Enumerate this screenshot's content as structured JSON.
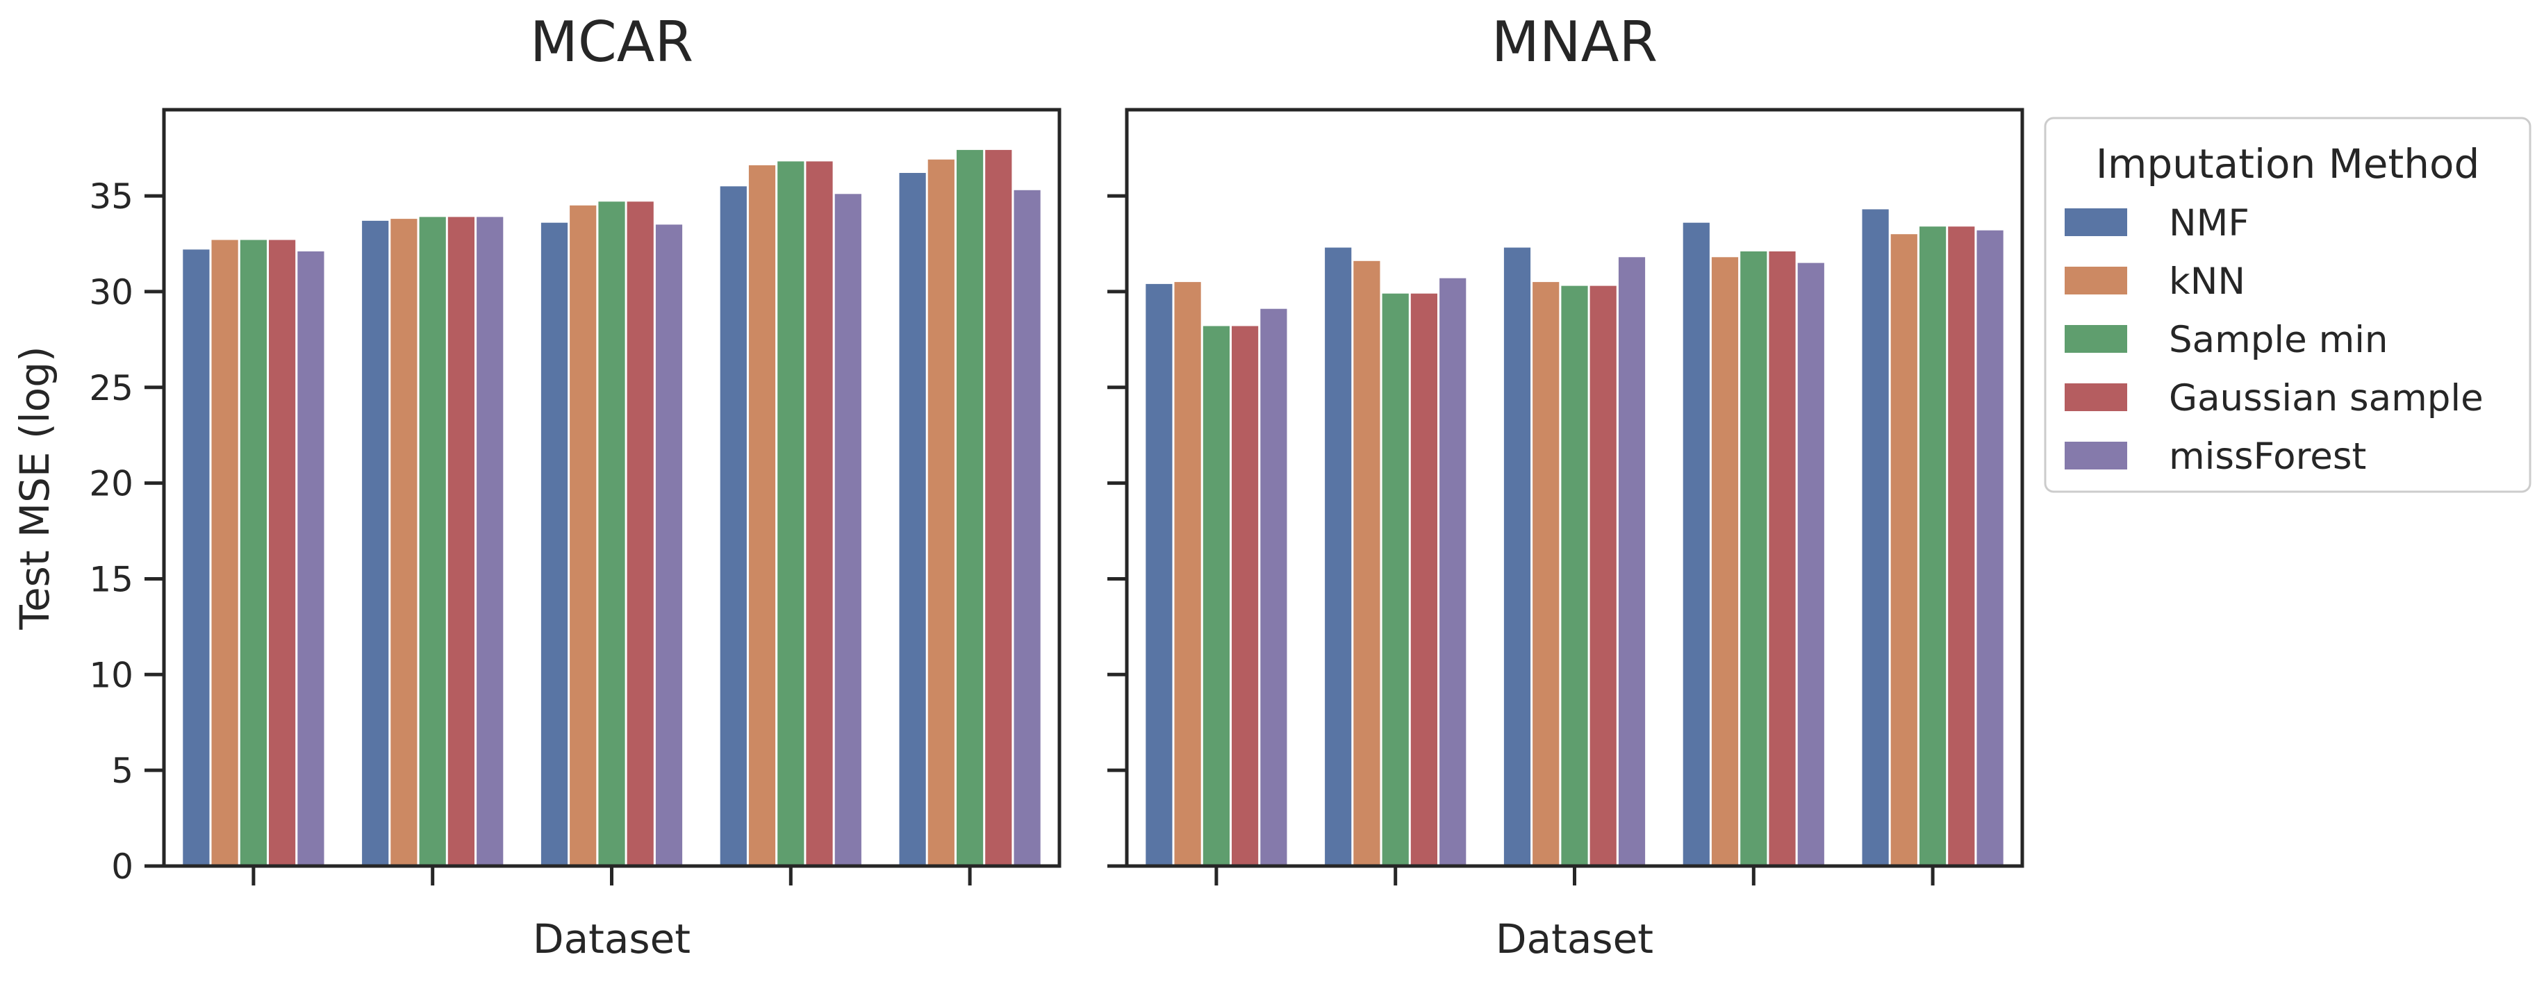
{
  "chart_data": [
    {
      "type": "bar",
      "title": "MCAR",
      "xlabel": "Dataset",
      "ylabel": "Test MSE (log)",
      "ylim": [
        0,
        39.5
      ],
      "yticks": [
        0,
        5,
        10,
        15,
        20,
        25,
        30,
        35
      ],
      "categories": [
        "",
        "",
        "",
        "",
        ""
      ],
      "grid": false,
      "series": [
        {
          "name": "NMF",
          "values": [
            32.2,
            33.7,
            33.6,
            35.5,
            36.2
          ]
        },
        {
          "name": "kNN",
          "values": [
            32.7,
            33.8,
            34.5,
            36.6,
            36.9
          ]
        },
        {
          "name": "Sample min",
          "values": [
            32.7,
            33.9,
            34.7,
            36.8,
            37.4
          ]
        },
        {
          "name": "Gaussian sample",
          "values": [
            32.7,
            33.9,
            34.7,
            36.8,
            37.4
          ]
        },
        {
          "name": "missForest",
          "values": [
            32.1,
            33.9,
            33.5,
            35.1,
            35.3
          ]
        }
      ]
    },
    {
      "type": "bar",
      "title": "MNAR",
      "xlabel": "Dataset",
      "ylabel": "",
      "ylim": [
        0,
        39.5
      ],
      "yticks": [
        0,
        5,
        10,
        15,
        20,
        25,
        30,
        35
      ],
      "categories": [
        "",
        "",
        "",
        "",
        ""
      ],
      "grid": false,
      "series": [
        {
          "name": "NMF",
          "values": [
            30.4,
            32.3,
            32.3,
            33.6,
            34.3
          ]
        },
        {
          "name": "kNN",
          "values": [
            30.5,
            31.6,
            30.5,
            31.8,
            33.0
          ]
        },
        {
          "name": "Sample min",
          "values": [
            28.2,
            29.9,
            30.3,
            32.1,
            33.4
          ]
        },
        {
          "name": "Gaussian sample",
          "values": [
            28.2,
            29.9,
            30.3,
            32.1,
            33.4
          ]
        },
        {
          "name": "missForest",
          "values": [
            29.1,
            30.7,
            31.8,
            31.5,
            33.2
          ]
        }
      ]
    }
  ],
  "legend": {
    "title": "Imputation Method",
    "placement": "right",
    "entries": [
      "NMF",
      "kNN",
      "Sample min",
      "Gaussian sample",
      "missForest"
    ]
  },
  "colors": {
    "NMF": "#5975a4",
    "kNN": "#cc8963",
    "Sample min": "#5f9e6e",
    "Gaussian sample": "#b55d60",
    "missForest": "#857aab"
  }
}
